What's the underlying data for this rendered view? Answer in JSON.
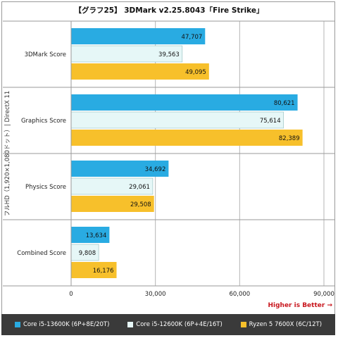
{
  "chart_data": {
    "type": "bar",
    "orientation": "horizontal",
    "title": "【グラフ25】 3DMark v2.25.8043「Fire Strike」",
    "ylabel": "フルHD（1,920×1,080ドット）| DirectX 11",
    "xlabel": "",
    "categories": [
      "3DMark Score",
      "Graphics Score",
      "Physics Score",
      "Combined Score"
    ],
    "series": [
      {
        "name": "Core i5-13600K (6P+8E/20T)",
        "color": "#29abe2",
        "values": [
          47707,
          80621,
          34692,
          13634
        ],
        "labels": [
          "47,707",
          "80,621",
          "34,692",
          "13,634"
        ]
      },
      {
        "name": "Core i5-12600K (6P+4E/16T)",
        "color": "#e6f7f7",
        "values": [
          39563,
          75614,
          29061,
          9808
        ],
        "labels": [
          "39,563",
          "75,614",
          "29,061",
          "9,808"
        ]
      },
      {
        "name": "Ryzen 5 7600X (6C/12T)",
        "color": "#f7c02b",
        "values": [
          49095,
          82389,
          29508,
          16176
        ],
        "labels": [
          "49,095",
          "82,389",
          "29,508",
          "16,176"
        ]
      }
    ],
    "xlim": [
      0,
      90000
    ],
    "xticks": [
      0,
      30000,
      60000,
      90000
    ],
    "xtick_labels": [
      "0",
      "30,000",
      "60,000",
      "90,000"
    ],
    "grid": true,
    "legend_position": "bottom",
    "annotation": "Higher is Better →"
  }
}
